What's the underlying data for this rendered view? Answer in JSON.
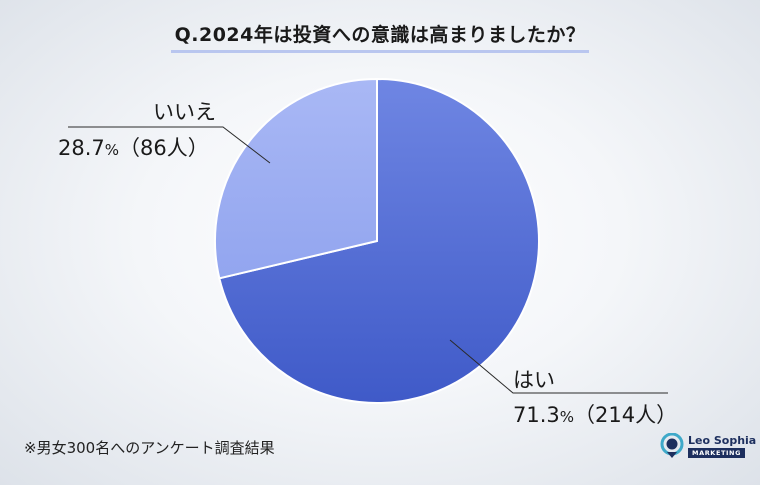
{
  "title": "Q.2024年は投資への意識は高まりましたか？",
  "footnote": "※男女300名へのアンケート調査結果",
  "logo": {
    "brand": "Leo Sophia",
    "sub": "MARKETING"
  },
  "colors": {
    "yes": "#5b77db",
    "no": "#9fb0f3",
    "border": "#ffffff",
    "leader": "#2a2a2a"
  },
  "chart_data": {
    "type": "pie",
    "title": "Q.2024年は投資への意識は高まりましたか？",
    "slices": [
      {
        "label": "はい",
        "percent": 71.3,
        "percent_text": "71.3",
        "count_text": "（214人）",
        "count": 214
      },
      {
        "label": "いいえ",
        "percent": 28.7,
        "percent_text": "28.7",
        "count_text": "（86人）",
        "count": 86
      }
    ],
    "unit": "%",
    "start": "12 o'clock",
    "direction": "clockwise"
  }
}
